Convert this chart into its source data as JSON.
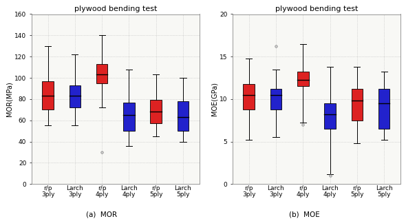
{
  "title": "plywood bending test",
  "categories": [
    "r/p\n3ply",
    "Larch\n3ply",
    "r/p\n4ply",
    "Larch\n4ply",
    "r/p\n5ply",
    "Larch\n5ply"
  ],
  "subplot_labels": [
    "(a)  MOR",
    "(b)  MOE"
  ],
  "MOR": {
    "ylabel": "MOR(MPa)",
    "ylim": [
      0,
      160
    ],
    "yticks": [
      0,
      20,
      40,
      60,
      80,
      100,
      120,
      140,
      160
    ],
    "boxes": [
      {
        "q1": 70,
        "median": 83,
        "q3": 97,
        "whislo": 55,
        "whishi": 130,
        "fliers": [],
        "color": "#dd2222"
      },
      {
        "q1": 72,
        "median": 83,
        "q3": 93,
        "whislo": 55,
        "whishi": 122,
        "fliers": [],
        "color": "#2222cc"
      },
      {
        "q1": 95,
        "median": 103,
        "q3": 113,
        "whislo": 72,
        "whishi": 140,
        "fliers": [
          30
        ],
        "color": "#dd2222"
      },
      {
        "q1": 50,
        "median": 65,
        "q3": 77,
        "whislo": 36,
        "whishi": 108,
        "fliers": [],
        "color": "#2222cc"
      },
      {
        "q1": 57,
        "median": 68,
        "q3": 79,
        "whislo": 45,
        "whishi": 103,
        "fliers": [],
        "color": "#dd2222"
      },
      {
        "q1": 50,
        "median": 63,
        "q3": 78,
        "whislo": 40,
        "whishi": 100,
        "fliers": [],
        "color": "#2222cc"
      }
    ]
  },
  "MOE": {
    "ylabel": "MOE(GPa)",
    "ylim": [
      0,
      20
    ],
    "yticks": [
      0,
      5,
      10,
      15,
      20
    ],
    "boxes": [
      {
        "q1": 8.8,
        "median": 10.5,
        "q3": 11.8,
        "whislo": 5.2,
        "whishi": 14.8,
        "fliers": [],
        "color": "#dd2222"
      },
      {
        "q1": 8.8,
        "median": 10.5,
        "q3": 11.2,
        "whislo": 5.5,
        "whishi": 13.5,
        "fliers": [
          16.2
        ],
        "color": "#2222cc"
      },
      {
        "q1": 11.5,
        "median": 12.3,
        "q3": 13.2,
        "whislo": 7.2,
        "whishi": 16.5,
        "fliers": [
          7.0
        ],
        "color": "#dd2222"
      },
      {
        "q1": 6.5,
        "median": 8.2,
        "q3": 9.5,
        "whislo": 1.2,
        "whishi": 13.8,
        "fliers": [
          1.0
        ],
        "color": "#2222cc"
      },
      {
        "q1": 7.5,
        "median": 9.8,
        "q3": 11.2,
        "whislo": 4.8,
        "whishi": 13.8,
        "fliers": [],
        "color": "#dd2222"
      },
      {
        "q1": 6.5,
        "median": 9.5,
        "q3": 11.2,
        "whislo": 5.2,
        "whishi": 13.2,
        "fliers": [],
        "color": "#2222cc"
      }
    ]
  },
  "box_width": 0.42,
  "background_color": "#ffffff",
  "plot_bg_color": "#f8f8f5",
  "grid_color": "#bbbbbb",
  "title_fontsize": 8,
  "label_fontsize": 7,
  "tick_fontsize": 6.5
}
